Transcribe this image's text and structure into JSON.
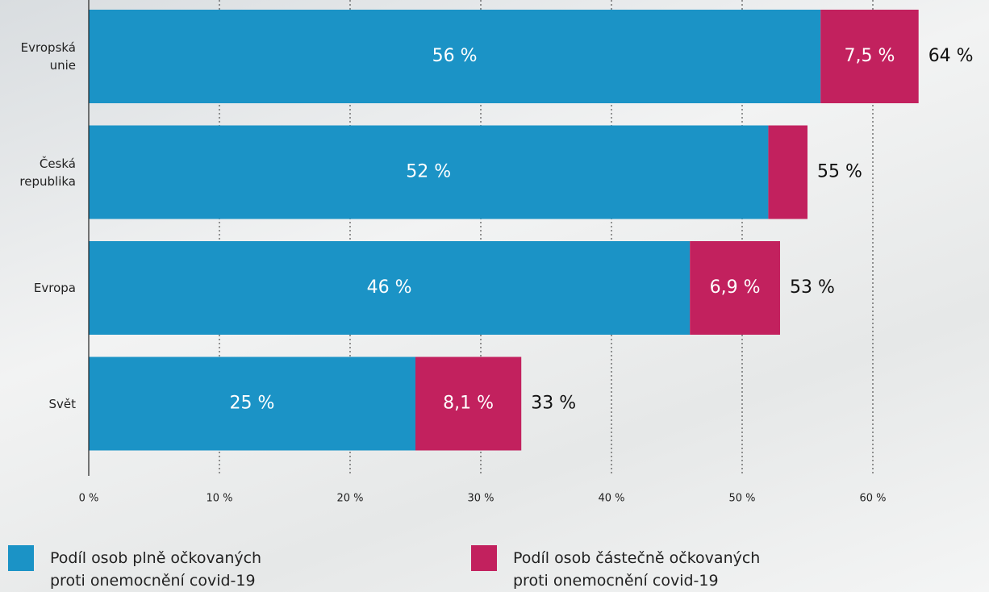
{
  "chart_data": {
    "type": "bar",
    "orientation": "horizontal",
    "stacked": true,
    "categories": [
      "Evropská unie",
      "Česká republika",
      "Evropa",
      "Svět"
    ],
    "series": [
      {
        "name": "Podíl osob plně očkovaných proti onemocnění covid-19",
        "color": "#1b93c6",
        "values": [
          56,
          52,
          46,
          25
        ],
        "value_labels": [
          "56 %",
          "52 %",
          "46 %",
          "25 %"
        ]
      },
      {
        "name": "Podíl osob částečně očkovaných proti onemocnění covid-19",
        "color": "#c2215e",
        "values": [
          7.5,
          3,
          6.9,
          8.1
        ],
        "value_labels": [
          "7,5 %",
          null,
          "6,9 %",
          "8,1 %"
        ]
      }
    ],
    "totals": [
      64,
      55,
      53,
      33
    ],
    "total_labels": [
      "64 %",
      "55 %",
      "53 %",
      "33 %"
    ],
    "xlim": [
      0,
      68
    ],
    "xticks": [
      {
        "value": 0,
        "label": "0 %"
      },
      {
        "value": 10,
        "label": "10 %"
      },
      {
        "value": 20,
        "label": "20 %"
      },
      {
        "value": 30,
        "label": "30 %"
      },
      {
        "value": 40,
        "label": "40 %"
      },
      {
        "value": 50,
        "label": "50 %"
      },
      {
        "value": 60,
        "label": "60 %"
      }
    ],
    "grid": true
  }
}
